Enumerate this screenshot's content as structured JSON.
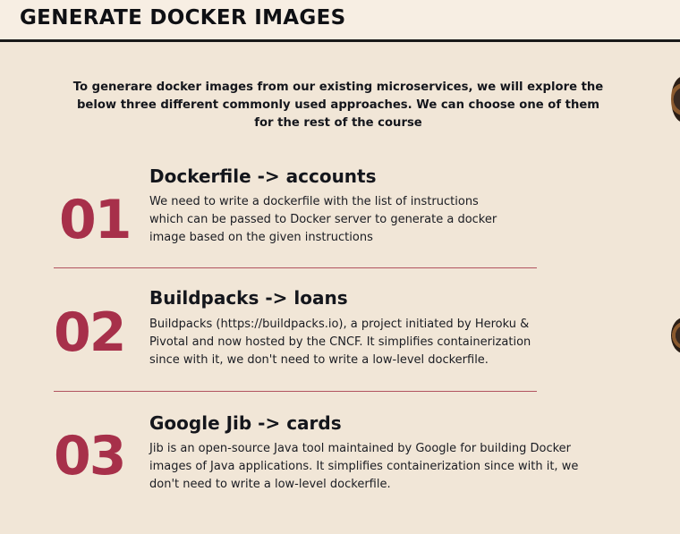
{
  "header": {
    "title": "GENERATE DOCKER IMAGES"
  },
  "intro": "To generare docker images from our existing microservices, we will explore the below three different commonly used approaches. We can choose one of them for the rest of the course",
  "items": [
    {
      "number": "01",
      "title": "Dockerfile -> accounts",
      "lines": [
        "We need to write a dockerfile with the list of instructions",
        "which can be passed to Docker server to generate a docker",
        "image based on the given instructions"
      ]
    },
    {
      "number": "02",
      "title": "Buildpacks -> loans",
      "lines": [
        "Buildpacks (https://buildpacks.io), a project initiated by Heroku &",
        "Pivotal and now hosted by the CNCF. It simplifies containerization",
        "since with it, we don't need to write a low-level dockerfile."
      ]
    },
    {
      "number": "03",
      "title": "Google Jib -> cards",
      "lines": [
        "Jib is an open-source Java tool maintained by Google for building Docker",
        "images of Java applications. It simplifies containerization since with it, we",
        "don't need to write a low-level dockerfile."
      ]
    }
  ],
  "colors": {
    "accent": "#a7304a",
    "background": "#f1e6d7",
    "divider": "#b2535f"
  }
}
